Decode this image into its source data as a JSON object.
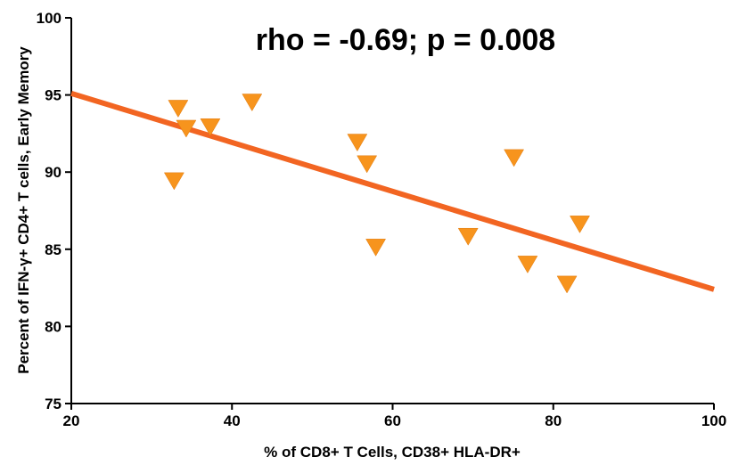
{
  "chart_data": {
    "type": "scatter",
    "annotation": "rho = -0.69; p = 0.008",
    "xlabel": "% of CD8+ T Cells,  CD38+ HLA-DR+",
    "ylabel": "Percent of IFN-γ+ CD4+ T cells, Early Memory",
    "xlim": [
      20,
      100
    ],
    "ylim": [
      75,
      100
    ],
    "xticks": [
      "20",
      "40",
      "60",
      "80",
      "100"
    ],
    "yticks": [
      "75",
      "80",
      "85",
      "90",
      "95",
      "100"
    ],
    "series": [
      {
        "marker": "triangle-down",
        "color": "#F7941D",
        "x": [
          32.8,
          33.3,
          34.3,
          37.3,
          42.5,
          55.6,
          56.8,
          57.9,
          69.4,
          75.1,
          76.8,
          81.7,
          83.3
        ],
        "y": [
          89.5,
          94.2,
          92.9,
          93.0,
          94.6,
          92.0,
          90.6,
          85.2,
          85.9,
          91.0,
          84.1,
          82.8,
          86.7
        ]
      }
    ],
    "fit_line": {
      "color": "#F26522",
      "x": [
        20,
        100
      ],
      "y": [
        95.1,
        82.4
      ]
    },
    "grid": false
  }
}
